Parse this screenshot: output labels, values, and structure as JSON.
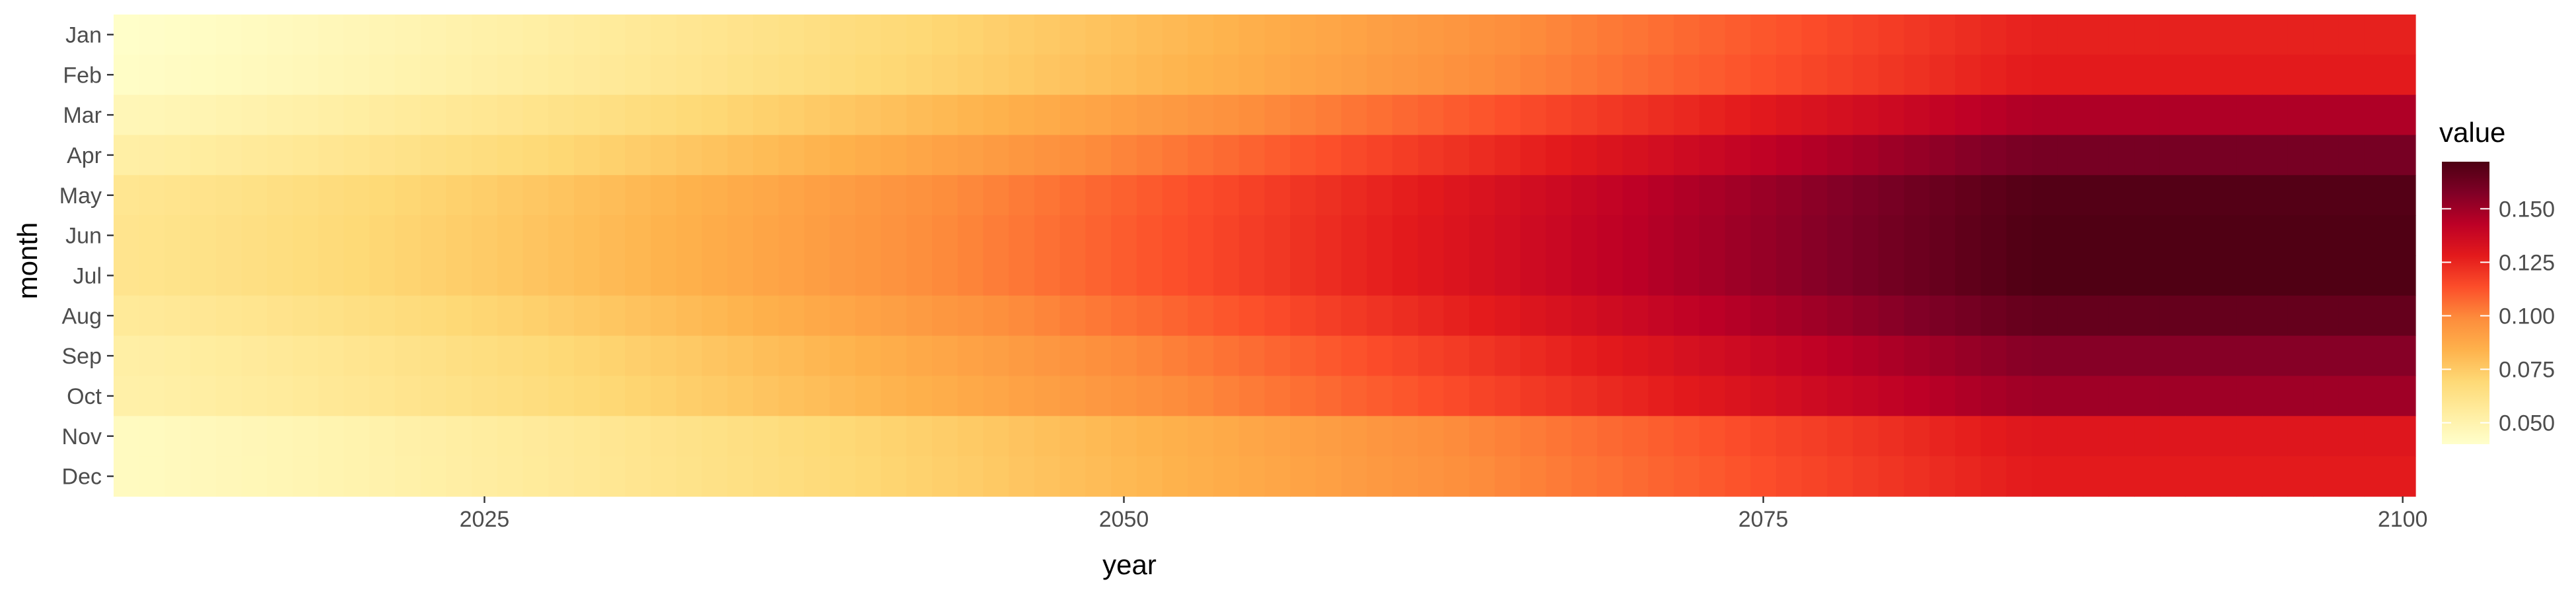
{
  "chart_data": {
    "type": "heatmap",
    "title": "",
    "xlabel": "year",
    "ylabel": "month",
    "x_range": [
      2011,
      2100
    ],
    "x_ticks": [
      2025,
      2050,
      2075,
      2100
    ],
    "months": [
      "Jan",
      "Feb",
      "Mar",
      "Apr",
      "May",
      "Jun",
      "Jul",
      "Aug",
      "Sep",
      "Oct",
      "Nov",
      "Dec"
    ],
    "legend": {
      "title": "value",
      "position": "right",
      "ticks": [
        0.05,
        0.075,
        0.1,
        0.125,
        0.15
      ],
      "tick_labels": [
        "0.050",
        "0.075",
        "0.100",
        "0.125",
        "0.150"
      ],
      "range": [
        0.04,
        0.172
      ]
    },
    "value_model": {
      "description_values": "cell value = start + (end - start) * progress(year); end values per month approximate the right edge of the figure",
      "start_year": 2011,
      "end_year": 2100,
      "start_values": [
        0.041,
        0.042,
        0.047,
        0.053,
        0.06,
        0.061,
        0.061,
        0.057,
        0.053,
        0.052,
        0.044,
        0.044
      ],
      "end_values": [
        0.126,
        0.128,
        0.146,
        0.16,
        0.17,
        0.171,
        0.171,
        0.165,
        0.156,
        0.15,
        0.13,
        0.128
      ]
    },
    "colorscale": [
      "#ffffcc",
      "#ffeda0",
      "#fed976",
      "#feb24c",
      "#fd8d3c",
      "#fc4e2a",
      "#e31a1c",
      "#bd0026",
      "#800026",
      "#4d0013"
    ]
  }
}
